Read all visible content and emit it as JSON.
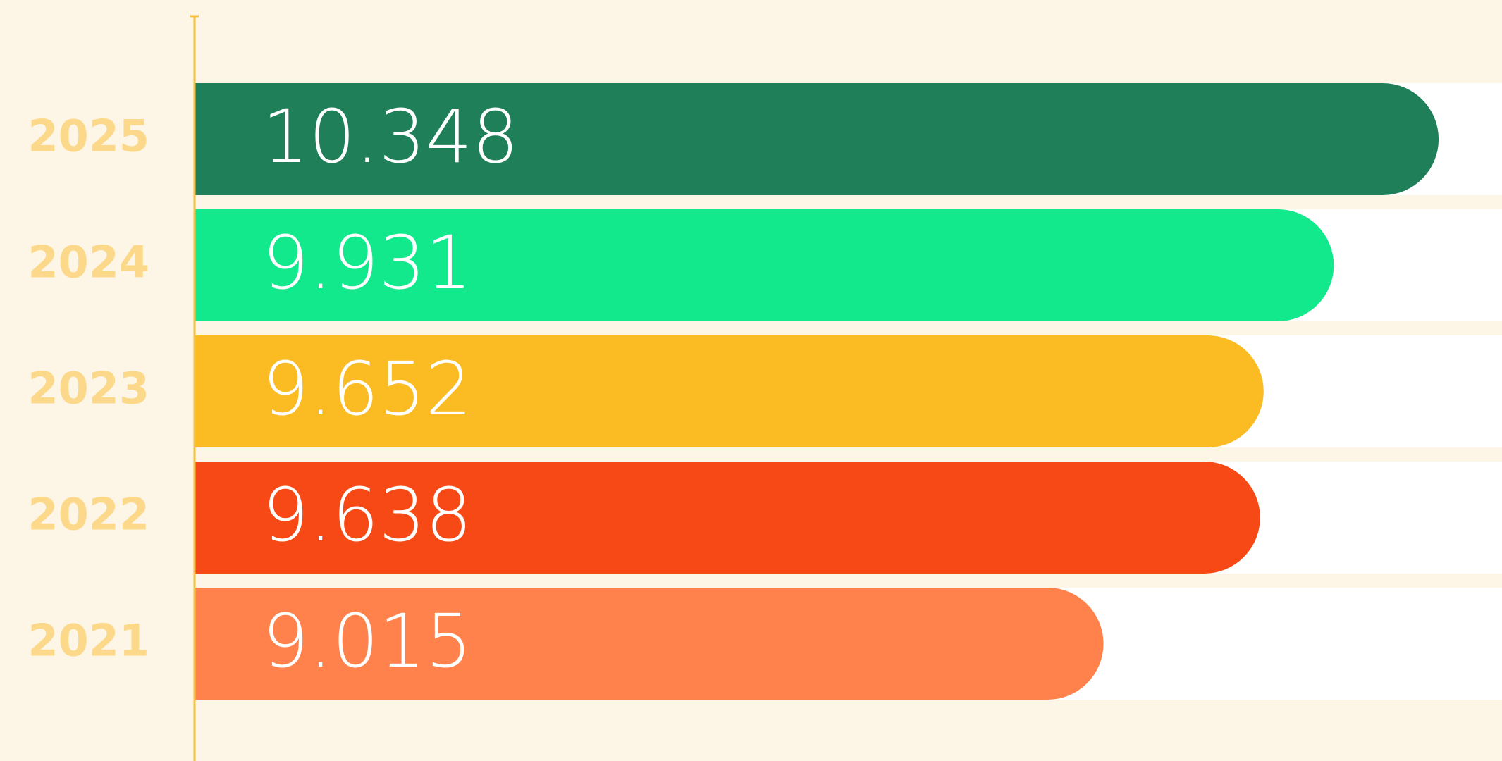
{
  "chart_data": {
    "type": "bar",
    "orientation": "horizontal",
    "categories": [
      "2025",
      "2024",
      "2023",
      "2022",
      "2021"
    ],
    "values": [
      10.348,
      9.931,
      9.652,
      9.638,
      9.015
    ],
    "colors": [
      "#1e7f58",
      "#12e88c",
      "#fbbb22",
      "#f64915",
      "#ff824c"
    ],
    "xlim": [
      5.4,
      10.6
    ]
  }
}
